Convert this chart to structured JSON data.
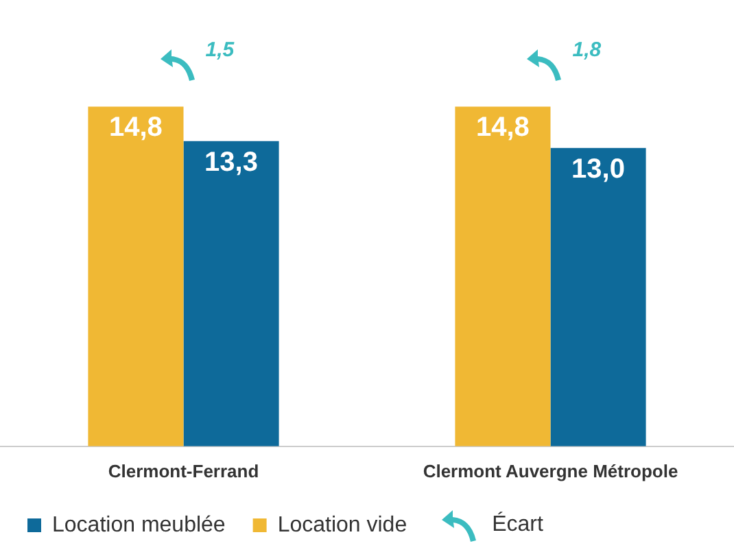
{
  "chart_data": {
    "type": "bar",
    "categories": [
      "Clermont-Ferrand",
      "Clermont Auvergne Métropole"
    ],
    "series": [
      {
        "name": "Location vide",
        "color": "#f0b834",
        "values": [
          14.8,
          14.8
        ],
        "value_labels": [
          "14,8",
          "14,8"
        ]
      },
      {
        "name": "Location meublée",
        "color": "#0e6a9a",
        "values": [
          13.3,
          13.0
        ],
        "value_labels": [
          "13,3",
          "13,0"
        ]
      }
    ],
    "annotations": [
      {
        "text": "1,5",
        "x": "Clermont-Ferrand",
        "y": 14.8
      },
      {
        "text": "1,8",
        "x": "Clermont Auvergne Métropole",
        "y": 14.8
      },
      "Écart"
    ],
    "legend": "bottom",
    "grid": false
  }
}
